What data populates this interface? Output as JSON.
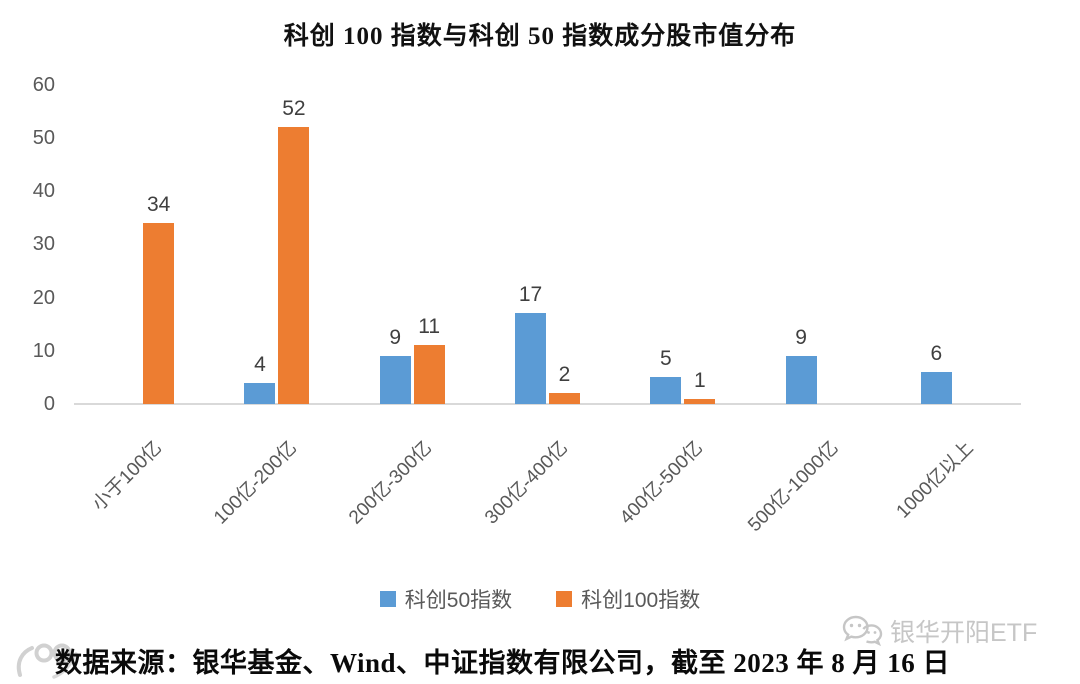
{
  "chart_data": {
    "type": "bar",
    "title": "科创 100 指数与科创 50 指数成分股市值分布",
    "categories": [
      "小于100亿",
      "100亿-200亿",
      "200亿-300亿",
      "300亿-400亿",
      "400亿-500亿",
      "500亿-1000亿",
      "1000亿以上"
    ],
    "series": [
      {
        "name": "科创50指数",
        "color": "#5B9BD5",
        "values": [
          0,
          4,
          9,
          17,
          5,
          9,
          6
        ]
      },
      {
        "name": "科创100指数",
        "color": "#ED7D31",
        "values": [
          34,
          52,
          11,
          2,
          1,
          0,
          0
        ]
      }
    ],
    "ylim": [
      0,
      60
    ],
    "yticks": [
      0,
      10,
      20,
      30,
      40,
      50,
      60
    ],
    "grid": false,
    "legend_position": "bottom",
    "show_value_labels": true,
    "value_labels_hidden_when_zero": true
  },
  "colors": {
    "series_blue": "#5B9BD5",
    "series_orange": "#ED7D31",
    "axis_text": "#595959",
    "value_text": "#3f3f3f",
    "baseline": "#d9d9d9",
    "watermark": "#c6c6c6"
  },
  "footer": {
    "source_text": "数据来源：银华基金、Wind、中证指数有限公司，截至 2023 年 8 月 16 日"
  },
  "watermarks": {
    "left_logo_name": "100-logo",
    "right_icon_name": "wechat-icon",
    "right_text": "银华开阳ETF"
  }
}
